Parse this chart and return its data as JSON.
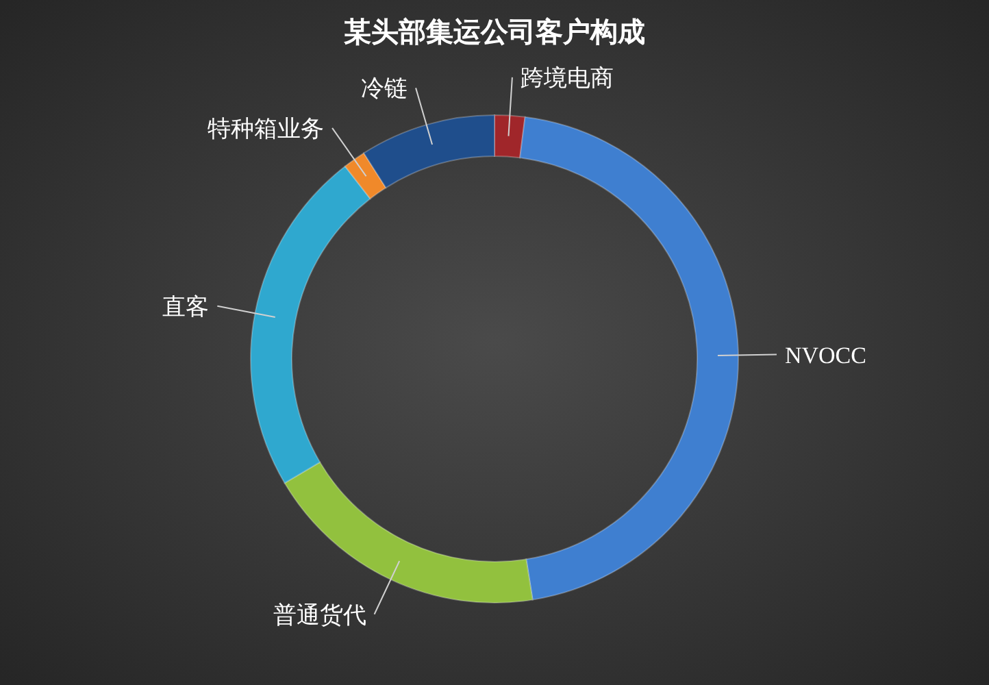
{
  "chart_data": {
    "type": "donut",
    "title": "某头部集运公司客户构成",
    "categories": [
      "跨境电商",
      "NVOCC",
      "普通货代",
      "直客",
      "特种箱业务",
      "冷链"
    ],
    "values": [
      2,
      45.5,
      19,
      23,
      1.5,
      9
    ],
    "colors": [
      "#a0262a",
      "#3f7fd0",
      "#92c13e",
      "#2fa8cf",
      "#f0892a",
      "#1f4e8c"
    ]
  }
}
